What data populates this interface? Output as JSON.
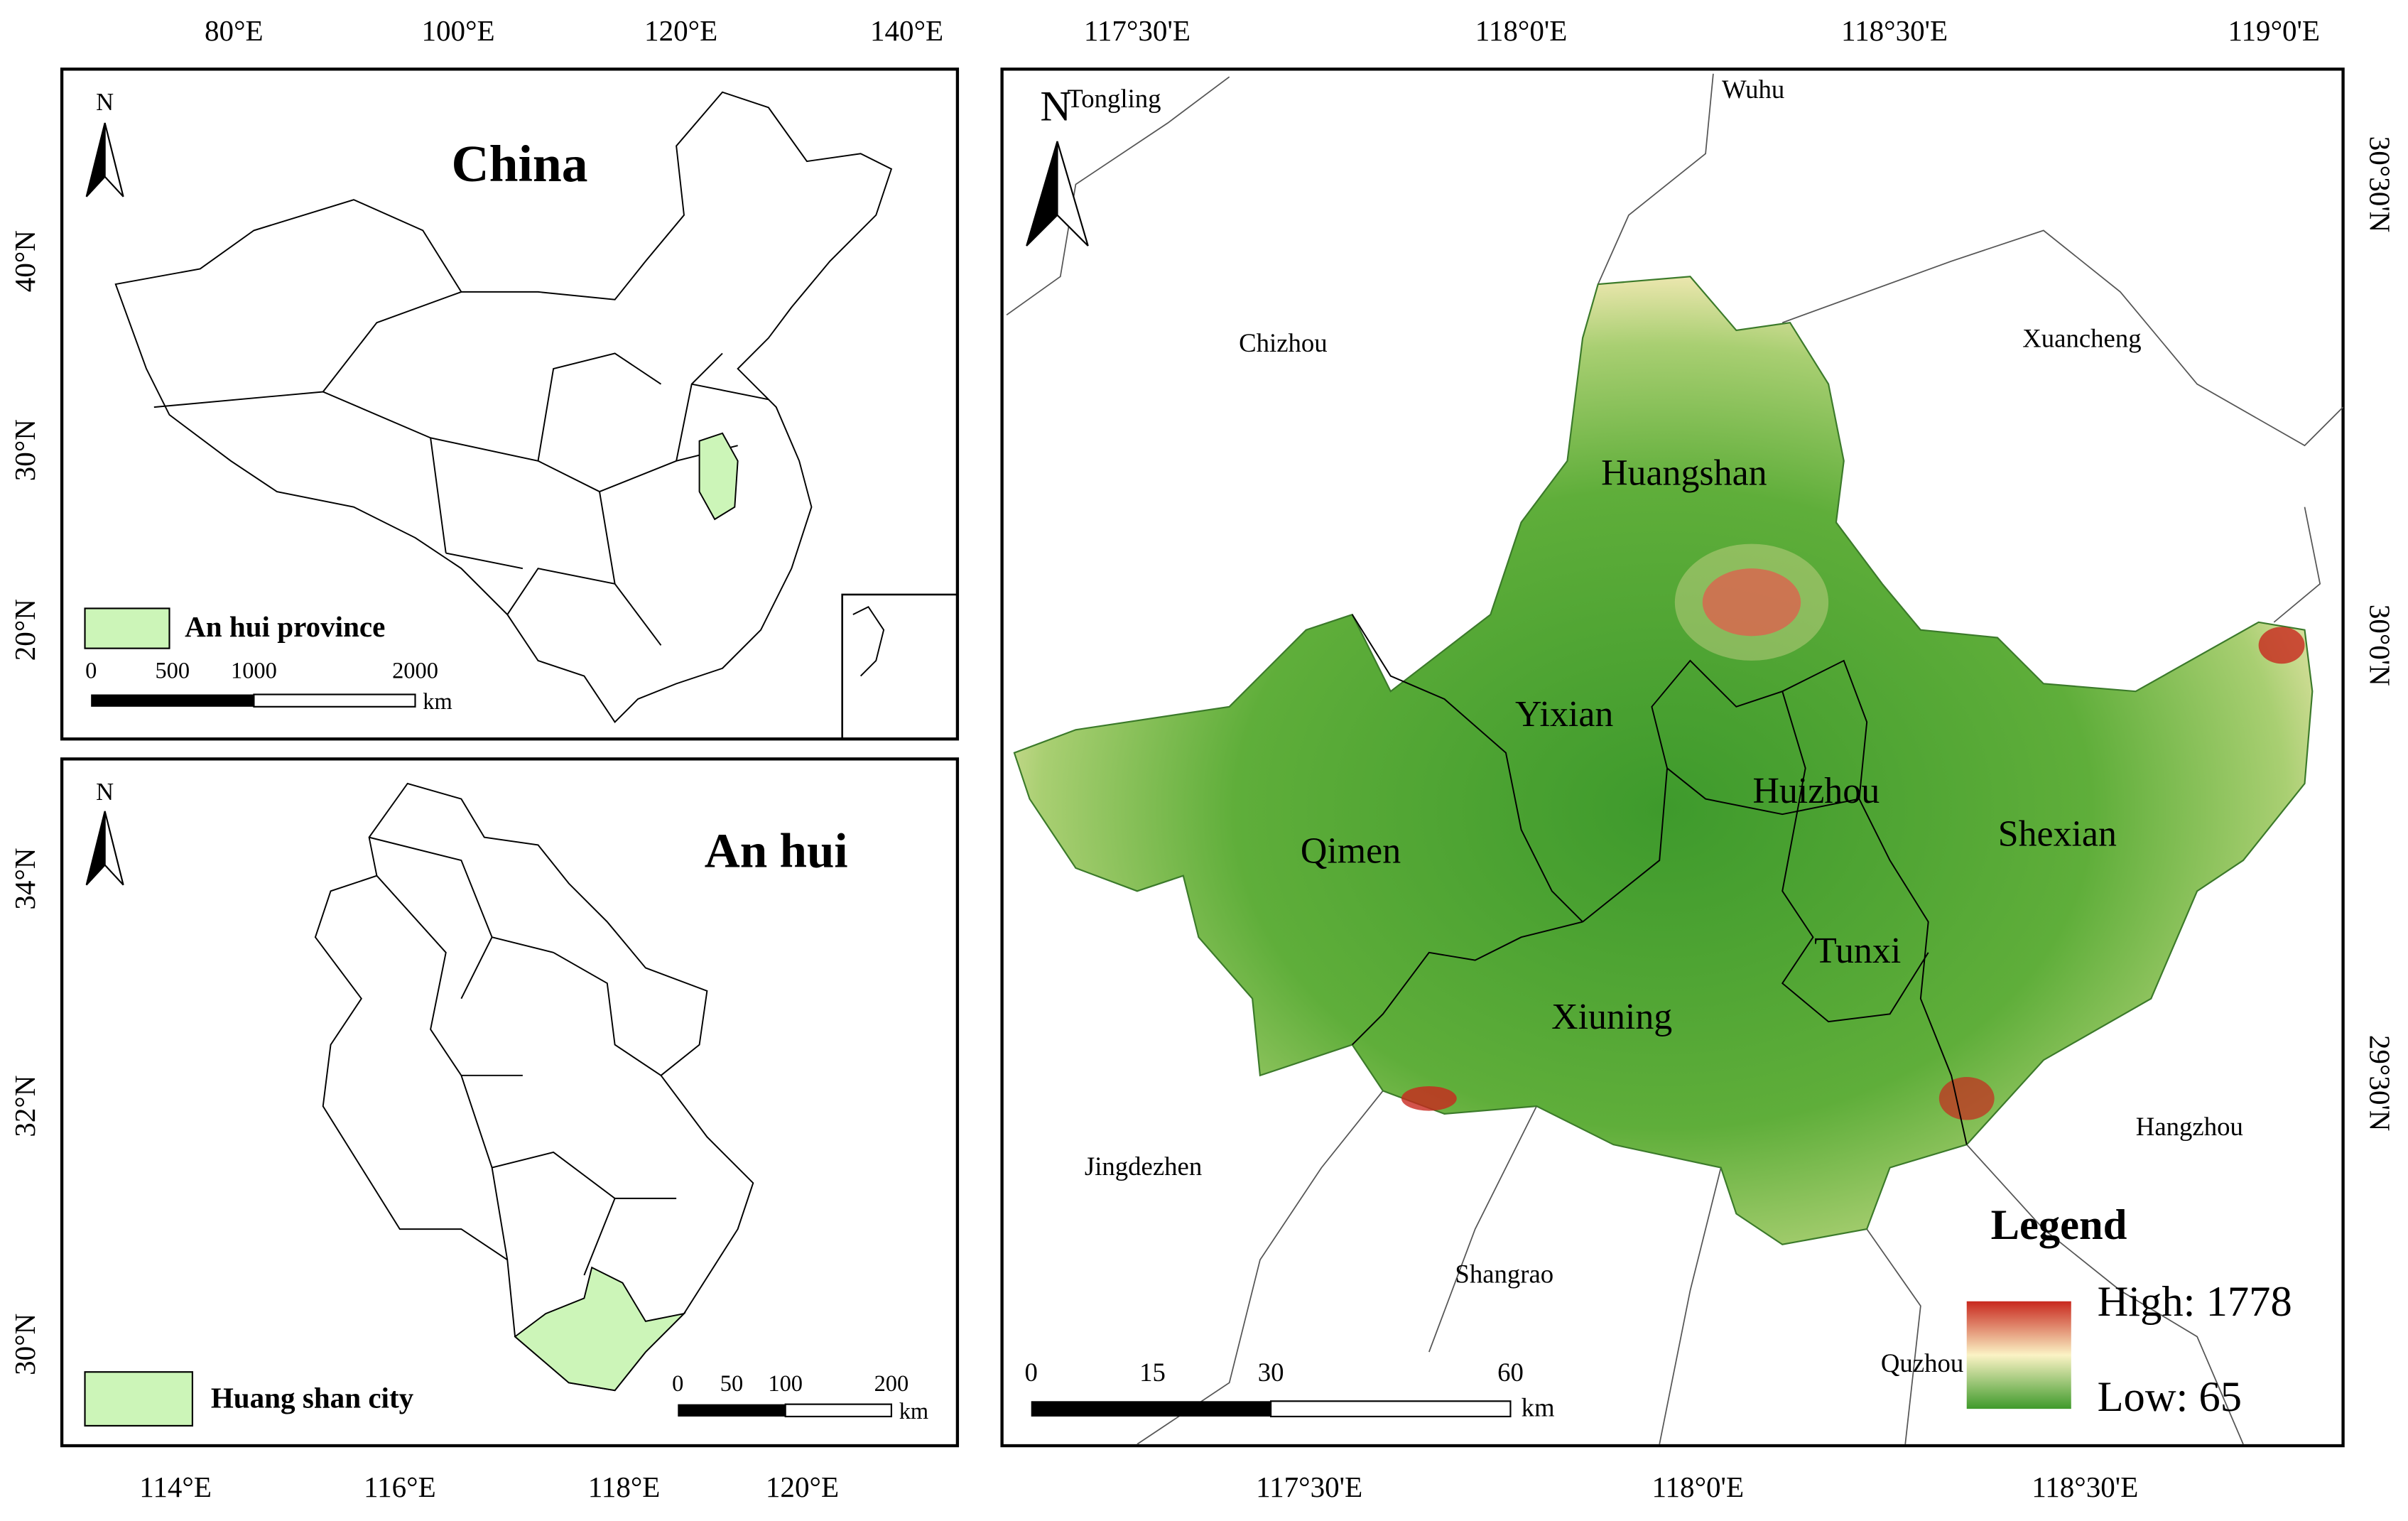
{
  "china_map": {
    "title": "China",
    "north": "N",
    "top_ticks": [
      "80°E",
      "100°E",
      "120°E",
      "140°E"
    ],
    "left_ticks": [
      "40°N",
      "30°N",
      "20°N"
    ],
    "legend": "An hui province",
    "scale": {
      "labels": [
        "0",
        "500",
        "1000",
        "2000"
      ],
      "unit": "km"
    }
  },
  "anhui_map": {
    "title": "An hui",
    "north": "N",
    "bottom_ticks": [
      "114°E",
      "116°E",
      "118°E",
      "120°E"
    ],
    "left_ticks": [
      "34°N",
      "32°N",
      "30°N"
    ],
    "legend": "Huang shan city",
    "scale": {
      "labels": [
        "0",
        "50",
        "100",
        "200"
      ],
      "unit": "km"
    }
  },
  "huangshan_map": {
    "north": "N",
    "top_ticks": [
      "117°30'E",
      "118°0'E",
      "118°30'E",
      "119°0'E"
    ],
    "bottom_ticks": [
      "117°30'E",
      "118°0'E",
      "118°30'E"
    ],
    "right_ticks": [
      "30°30'N",
      "30°0'N",
      "29°30'N"
    ],
    "districts": [
      "Huangshan",
      "Yixian",
      "Huizhou",
      "Shexian",
      "Qimen",
      "Tunxi",
      "Xiuning"
    ],
    "neighbors": [
      "Tongling",
      "Wuhu",
      "Chizhou",
      "Xuancheng",
      "Jingdezhen",
      "Hangzhou",
      "Shangrao",
      "Quzhou"
    ],
    "scale": {
      "labels": [
        "0",
        "15",
        "30",
        "60"
      ],
      "unit": "km"
    },
    "legend": {
      "title": "Legend",
      "high": "High: 1778",
      "low": "Low: 65"
    }
  }
}
